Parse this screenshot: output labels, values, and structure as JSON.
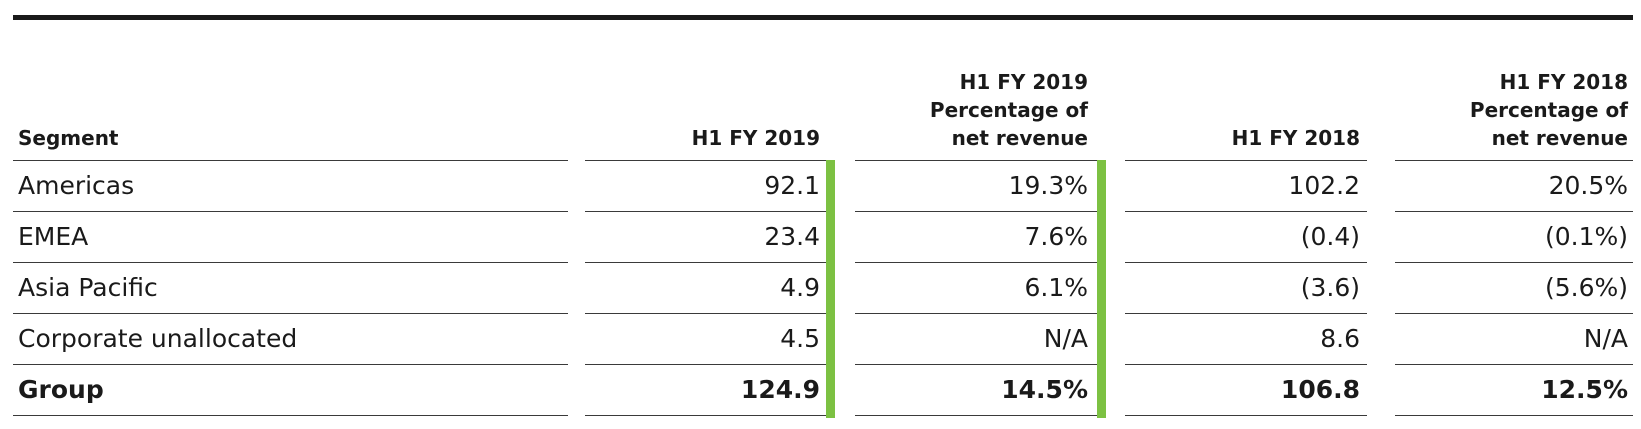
{
  "table": {
    "headers": {
      "segment": "Segment",
      "c1": "H1 FY 2019",
      "c2": [
        "H1 FY 2019",
        "Percentage of",
        "net revenue"
      ],
      "c3": "H1 FY 2018",
      "c4": [
        "H1 FY 2018",
        "Percentage of",
        "net revenue"
      ]
    },
    "rows": [
      {
        "segment": "Americas",
        "c1": "92.1",
        "c2": "19.3%",
        "c3": "102.2",
        "c4": "20.5%"
      },
      {
        "segment": "EMEA",
        "c1": "23.4",
        "c2": "7.6%",
        "c3": "(0.4)",
        "c4": "(0.1%)"
      },
      {
        "segment": "Asia Pacific",
        "c1": "4.9",
        "c2": "6.1%",
        "c3": "(3.6)",
        "c4": "(5.6%)"
      },
      {
        "segment": "Corporate unallocated",
        "c1": "4.5",
        "c2": "N/A",
        "c3": "8.6",
        "c4": "N/A"
      },
      {
        "segment": "Group",
        "c1": "124.9",
        "c2": "14.5%",
        "c3": "106.8",
        "c4": "12.5%"
      }
    ],
    "accent_color": "#7cc142"
  }
}
